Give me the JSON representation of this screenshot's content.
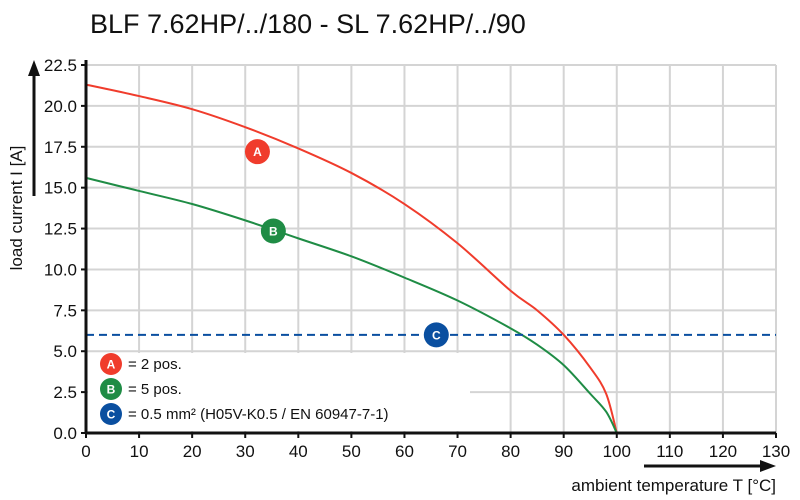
{
  "chart_data": {
    "type": "line",
    "title": "BLF 7.62HP/../180 - SL 7.62HP/../90",
    "xlabel": "ambient temperature T [°C]",
    "ylabel": "load current I [A]",
    "xlim": [
      0,
      130
    ],
    "ylim": [
      0,
      22.5
    ],
    "xticks": [
      "0",
      "10",
      "20",
      "30",
      "40",
      "50",
      "60",
      "70",
      "80",
      "90",
      "100",
      "110",
      "120",
      "130"
    ],
    "yticks": [
      "0.0",
      "2.5",
      "5.0",
      "7.5",
      "10.0",
      "12.5",
      "15.0",
      "17.5",
      "20.0",
      "22.5"
    ],
    "grid": true,
    "legend_placement": "bottom-left",
    "series": [
      {
        "marker": "A",
        "name": "= 2 pos.",
        "color": "#f03c2c",
        "x": [
          0,
          10,
          20,
          30,
          40,
          50,
          60,
          70,
          80,
          85,
          90,
          95,
          98,
          100
        ],
        "y": [
          21.3,
          20.6,
          19.8,
          18.7,
          17.4,
          15.9,
          14.0,
          11.6,
          8.7,
          7.5,
          6.0,
          4.0,
          2.4,
          0
        ]
      },
      {
        "marker": "B",
        "name": "= 5 pos.",
        "color": "#1f8c45",
        "x": [
          0,
          10,
          20,
          30,
          40,
          50,
          60,
          70,
          80,
          85,
          90,
          95,
          98,
          100
        ],
        "y": [
          15.6,
          14.8,
          14.0,
          13.0,
          11.9,
          10.8,
          9.5,
          8.1,
          6.4,
          5.4,
          4.15,
          2.4,
          1.3,
          0
        ]
      },
      {
        "marker": "C",
        "name": "= 0.5 mm² (H05V-K0.5 / EN 60947-7-1)",
        "color": "#0a4fa0",
        "style": "dashed",
        "x": [
          0,
          130
        ],
        "y": [
          6.0,
          6.0
        ]
      }
    ],
    "marker_positions": [
      {
        "label": "A",
        "x": 32.3,
        "y": 17.2
      },
      {
        "label": "B",
        "x": 35.3,
        "y": 12.35
      },
      {
        "label": "C",
        "x": 66,
        "y": 6.0
      }
    ]
  }
}
